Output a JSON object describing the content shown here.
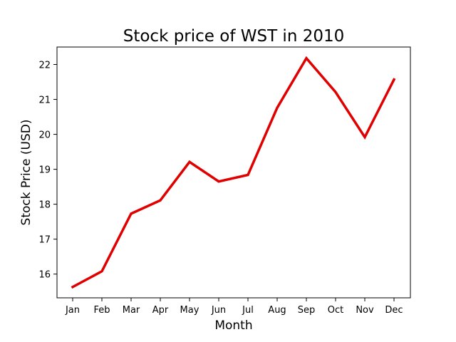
{
  "chart_data": {
    "type": "line",
    "title": "Stock price of WST in 2010",
    "xlabel": "Month",
    "ylabel": "Stock Price (USD)",
    "categories": [
      "Jan",
      "Feb",
      "Mar",
      "Apr",
      "May",
      "Jun",
      "Jul",
      "Aug",
      "Sep",
      "Oct",
      "Nov",
      "Dec"
    ],
    "series": [
      {
        "color": "#e00000",
        "values": [
          15.63,
          16.08,
          17.73,
          18.11,
          19.21,
          18.65,
          18.84,
          20.76,
          22.18,
          21.21,
          19.92,
          21.57
        ]
      }
    ],
    "ylim": [
      15.32,
      22.5
    ],
    "yticks": [
      16,
      17,
      18,
      19,
      20,
      21,
      22
    ],
    "grid": false,
    "legend": "none"
  }
}
